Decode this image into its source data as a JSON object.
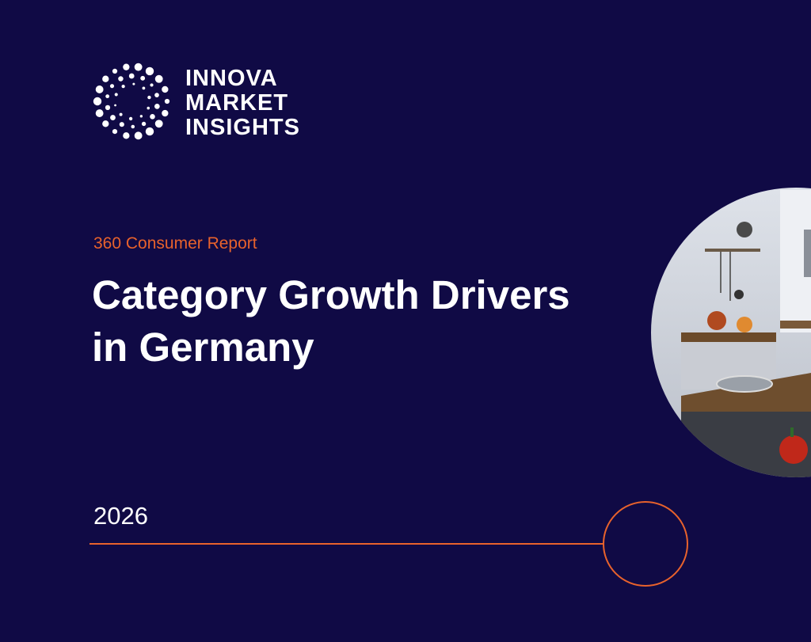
{
  "logo": {
    "lines": [
      "INNOVA",
      "MARKET",
      "INSIGHTS"
    ]
  },
  "subtitle": "360 Consumer Report",
  "title_lines": [
    "Category Growth Drivers",
    "in Germany"
  ],
  "year": "2026"
}
